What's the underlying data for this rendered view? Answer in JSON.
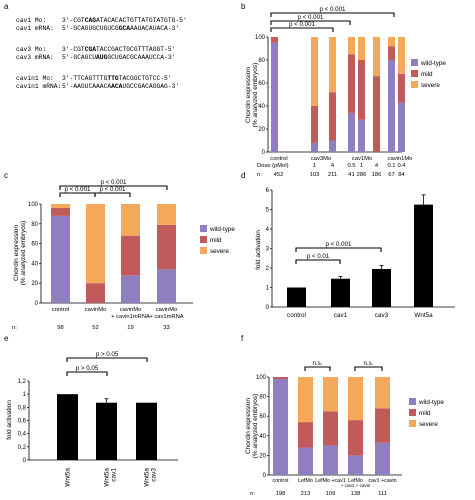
{
  "sequences": [
    {
      "label": "cav1 Mo:",
      "seq": "3'-CGTCAGATACACACTGTTATGTATGTG-5'",
      "bold": [
        6,
        9
      ]
    },
    {
      "label": "cav1 mRNA:",
      "seq": "5'-GCAGUGCUGUCGGCAAAUACAUACA-3'",
      "bold": [
        15,
        18
      ]
    },
    {
      "label": "cav3 Mo:",
      "seq": "3'-CGTCGATACCGACTGCGTTTAGGT-5'",
      "bold": [
        6,
        9
      ]
    },
    {
      "label": "cav3 mRNA:",
      "seq": "5'-GCAGCUAUGGCUGACGCAAAUCCA-3'",
      "bold": [
        9,
        12
      ]
    },
    {
      "label": "cavin1 Mo:",
      "seq": "3'-TTCAGTTTGTTGTACGGCTGTCC-5'",
      "bold": [
        12,
        15
      ]
    },
    {
      "label": "cavin1 mRNA:",
      "seq": "5'-AAGUCAAACAACAUGCCGACAGGAG-3'",
      "bold": [
        13,
        16
      ]
    }
  ],
  "chart_data": [
    {
      "panel": "a",
      "type": "table"
    },
    {
      "panel": "b",
      "type": "bar",
      "stacked": true,
      "ylabel": "Chordin expression (% analyzed embryos)",
      "ylim": [
        0,
        100
      ],
      "yticks": [
        0,
        20,
        40,
        60,
        80,
        100
      ],
      "groups": [
        {
          "name": "control",
          "dose": "",
          "n": "452",
          "bars": [
            {
              "wild": 95,
              "mild": 5,
              "severe": 0
            }
          ]
        },
        {
          "name": "cav3Mo",
          "dose": "1",
          "n": "103",
          "bars": [
            {
              "wild": 8,
              "mild": 32,
              "severe": 60
            }
          ]
        },
        {
          "name": "",
          "dose": "4",
          "n": "211",
          "bars": [
            {
              "wild": 10,
              "mild": 42,
              "severe": 48
            }
          ]
        },
        {
          "name": "cav1Mo",
          "dose": "0.5",
          "n": "41",
          "bars": [
            {
              "wild": 34,
              "mild": 51,
              "severe": 15
            }
          ]
        },
        {
          "name": "",
          "dose": "1",
          "n": "286",
          "bars": [
            {
              "wild": 28,
              "mild": 52,
              "severe": 20
            }
          ]
        },
        {
          "name": "",
          "dose": "4",
          "n": "186",
          "bars": [
            {
              "wild": 0,
              "mild": 66,
              "severe": 34
            }
          ]
        },
        {
          "name": "cavin1Mo",
          "dose": "0.1",
          "n": "67",
          "bars": [
            {
              "wild": 80,
              "mild": 12,
              "severe": 8
            }
          ]
        },
        {
          "name": "",
          "dose": "0.4",
          "n": "84",
          "bars": [
            {
              "wild": 43,
              "mild": 25,
              "severe": 32
            }
          ]
        }
      ],
      "dose_label": "Dose (pMol)",
      "n_label": "n:",
      "legend": [
        "wild-type",
        "mild",
        "severe"
      ],
      "legend_position": "right",
      "annotations": [
        "p < 0.001",
        "p < 0.001",
        "p < 0.001"
      ]
    },
    {
      "panel": "c",
      "type": "bar",
      "stacked": true,
      "ylabel": "Chordin expression (% analyzed embryos)",
      "ylim": [
        0,
        100
      ],
      "yticks": [
        0,
        20,
        40,
        60,
        80,
        100
      ],
      "categories": [
        "control",
        "cavinMo",
        "cavinMo + cavin1mRNA",
        "cavinMo + cav1mRNA"
      ],
      "n": [
        "98",
        "52",
        "19",
        "33"
      ],
      "n_label": "n:",
      "series": [
        {
          "name": "wild-type",
          "values": [
            88,
            0,
            28,
            34
          ]
        },
        {
          "name": "mild",
          "values": [
            8,
            20,
            40,
            45
          ]
        },
        {
          "name": "severe",
          "values": [
            4,
            80,
            32,
            21
          ]
        }
      ],
      "legend": [
        "wild-type",
        "mild",
        "severe"
      ],
      "legend_position": "right",
      "annotations": [
        "p < 0.001",
        "p < 0.001",
        "p < 0.001"
      ]
    },
    {
      "panel": "d",
      "type": "bar",
      "ylabel": "fold activation",
      "ylim": [
        0,
        6
      ],
      "yticks": [
        0,
        1,
        2,
        3,
        4,
        5,
        6
      ],
      "categories": [
        "control",
        "cav1",
        "cav3",
        "Wnt5a"
      ],
      "values": [
        1,
        1.45,
        1.95,
        5.25
      ],
      "errors": [
        0,
        0.12,
        0.18,
        0.5
      ],
      "annotations": [
        "p < 0.01",
        "p < 0.001"
      ]
    },
    {
      "panel": "e",
      "type": "bar",
      "ylabel": "fold activation",
      "ylim": [
        0,
        1.2
      ],
      "yticks": [
        "0",
        "0.2",
        "0.4",
        "0.6",
        "0.8",
        "1",
        "1.2"
      ],
      "categories": [
        "Wnt5a",
        "Wnt5a cav1",
        "Wnt5a cav3"
      ],
      "values": [
        1.0,
        0.87,
        0.87
      ],
      "errors": [
        0,
        0.06,
        0
      ],
      "annotations": [
        "p > 0.05",
        "p > 0.05"
      ]
    },
    {
      "panel": "f",
      "type": "bar",
      "stacked": true,
      "ylabel": "Chordin expression (% analyzed embryos)",
      "ylim": [
        0,
        100
      ],
      "yticks": [
        0,
        20,
        40,
        60,
        80,
        100
      ],
      "categories": [
        "control",
        "LefMo",
        "LefMo + cav1",
        "LefMo + cav1 + cavin",
        "cav1 + cavin"
      ],
      "n": [
        "198",
        "213",
        "109",
        "138",
        "111"
      ],
      "n_label": "n:",
      "series": [
        {
          "name": "wild-type",
          "values": [
            98,
            28,
            30,
            20,
            33
          ]
        },
        {
          "name": "mild",
          "values": [
            2,
            26,
            35,
            36,
            35
          ]
        },
        {
          "name": "severe",
          "values": [
            0,
            46,
            35,
            44,
            32
          ]
        }
      ],
      "legend": [
        "wild-type",
        "mild",
        "severe"
      ],
      "legend_position": "right",
      "annotations": [
        "n.s.",
        "n.s."
      ]
    }
  ],
  "colors": {
    "wild": "#8f7fbf",
    "mild": "#c15b5b",
    "severe": "#f4a85a",
    "bar": "#000000",
    "axis": "#000000"
  }
}
